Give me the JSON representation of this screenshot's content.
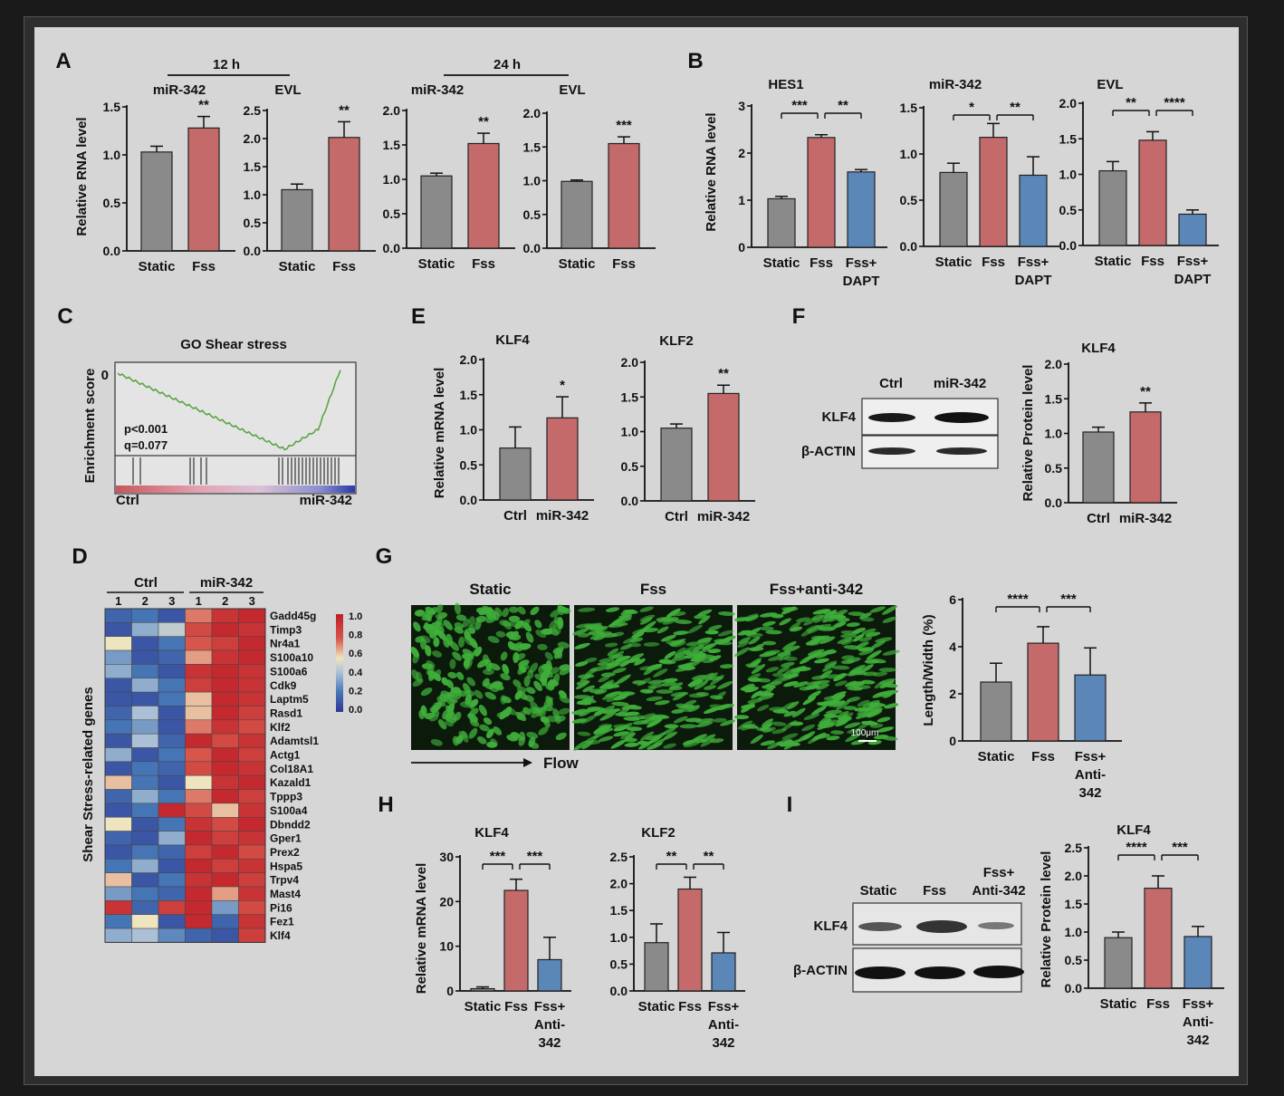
{
  "panels": {
    "A": {
      "letter": "A",
      "group_12h": "12 h",
      "group_24h": "24 h",
      "ylabel": "Relative RNA level",
      "charts": [
        {
          "title": "miR-342",
          "categories": [
            "Static",
            "Fss"
          ],
          "values": [
            1.03,
            1.28
          ],
          "errors": [
            0.06,
            0.12
          ],
          "ylim": [
            0,
            1.5
          ],
          "ticks": [
            "0.0",
            "0.5",
            "1.0",
            "1.5"
          ],
          "sig": [
            {
              "from": 1,
              "to": 1,
              "label": "**"
            }
          ]
        },
        {
          "title": "EVL",
          "categories": [
            "Static",
            "Fss"
          ],
          "values": [
            1.09,
            2.02
          ],
          "errors": [
            0.1,
            0.28
          ],
          "ylim": [
            0,
            2.5
          ],
          "ticks": [
            "0.0",
            "0.5",
            "1.0",
            "1.5",
            "2.0",
            "2.5"
          ],
          "sig": [
            {
              "from": 1,
              "to": 1,
              "label": "**"
            }
          ]
        },
        {
          "title": "miR-342",
          "categories": [
            "Static",
            "Fss"
          ],
          "values": [
            1.05,
            1.52
          ],
          "errors": [
            0.04,
            0.15
          ],
          "ylim": [
            0,
            2.0
          ],
          "ticks": [
            "0.0",
            "0.5",
            "1.0",
            "1.5",
            "2.0"
          ],
          "sig": [
            {
              "from": 1,
              "to": 1,
              "label": "**"
            }
          ]
        },
        {
          "title": "EVL",
          "categories": [
            "Static",
            "Fss"
          ],
          "values": [
            0.99,
            1.55
          ],
          "errors": [
            0.02,
            0.1
          ],
          "ylim": [
            0,
            2.0
          ],
          "ticks": [
            "0.0",
            "0.5",
            "1.0",
            "1.5",
            "2.0"
          ],
          "sig": [
            {
              "from": 1,
              "to": 1,
              "label": "***"
            }
          ]
        }
      ]
    },
    "B": {
      "letter": "B",
      "ylabel": "Relative RNA level",
      "charts": [
        {
          "title": "HES1",
          "categories": [
            "Static",
            "Fss",
            "Fss+ DAPT"
          ],
          "values": [
            1.03,
            2.33,
            1.6
          ],
          "errors": [
            0.05,
            0.06,
            0.05
          ],
          "ylim": [
            0,
            3
          ],
          "ticks": [
            "0",
            "1",
            "2",
            "3"
          ],
          "sig": [
            {
              "from": 0,
              "to": 1,
              "label": "***"
            },
            {
              "from": 1,
              "to": 2,
              "label": "**"
            }
          ]
        },
        {
          "title": "miR-342",
          "categories": [
            "Static",
            "Fss",
            "Fss+ DAPT"
          ],
          "values": [
            0.8,
            1.18,
            0.77
          ],
          "errors": [
            0.1,
            0.15,
            0.2
          ],
          "ylim": [
            0,
            1.5
          ],
          "ticks": [
            "0.0",
            "0.5",
            "1.0",
            "1.5"
          ],
          "sig": [
            {
              "from": 0,
              "to": 1,
              "label": "*"
            },
            {
              "from": 1,
              "to": 2,
              "label": "**"
            }
          ]
        },
        {
          "title": "EVL",
          "categories": [
            "Static",
            "Fss",
            "Fss+ DAPT"
          ],
          "values": [
            1.05,
            1.48,
            0.44
          ],
          "errors": [
            0.13,
            0.12,
            0.06
          ],
          "ylim": [
            0,
            2.0
          ],
          "ticks": [
            "0.0",
            "0.5",
            "1.0",
            "1.5",
            "2.0"
          ],
          "sig": [
            {
              "from": 0,
              "to": 1,
              "label": "**"
            },
            {
              "from": 1,
              "to": 2,
              "label": "****"
            }
          ]
        }
      ]
    },
    "C": {
      "letter": "C",
      "title": "GO Shear stress",
      "ylabel": "Enrichment score",
      "y0": "0",
      "stats": [
        "p<0.001",
        "q=0.077"
      ],
      "left_label": "Ctrl",
      "right_label": "miR-342"
    },
    "D": {
      "letter": "D",
      "group_ctrl": "Ctrl",
      "group_mir": "miR-342",
      "replicates": [
        "1",
        "2",
        "3",
        "1",
        "2",
        "3"
      ],
      "ylabel": "Shear Stress-related genes",
      "genes": [
        "Gadd45g",
        "Timp3",
        "Nr4a1",
        "S100a10",
        "S100a6",
        "Cdk9",
        "Laptm5",
        "Rasd1",
        "Klf2",
        "Adamtsl1",
        "Actg1",
        "Col18A1",
        "Kazald1",
        "Tppp3",
        "S100a4",
        "Dbndd2",
        "Gper1",
        "Prex2",
        "Hspa5",
        "Trpv4",
        "Mast4",
        "Pi16",
        "Fez1",
        "Klf4"
      ],
      "colorbar_ticks": [
        "1.0",
        "0.8",
        "0.6",
        "0.4",
        "0.2",
        "0.0"
      ],
      "matrix": [
        [
          0.15,
          0.2,
          0.1,
          0.7,
          0.9,
          0.95
        ],
        [
          0.1,
          0.35,
          0.45,
          0.8,
          0.95,
          0.9
        ],
        [
          0.55,
          0.1,
          0.2,
          0.75,
          0.85,
          0.95
        ],
        [
          0.3,
          0.1,
          0.15,
          0.65,
          0.9,
          0.95
        ],
        [
          0.35,
          0.2,
          0.1,
          0.9,
          0.95,
          0.9
        ],
        [
          0.1,
          0.35,
          0.2,
          0.85,
          0.95,
          0.9
        ],
        [
          0.1,
          0.1,
          0.2,
          0.6,
          0.95,
          0.9
        ],
        [
          0.15,
          0.4,
          0.1,
          0.6,
          0.95,
          0.85
        ],
        [
          0.2,
          0.3,
          0.1,
          0.7,
          0.9,
          0.8
        ],
        [
          0.1,
          0.4,
          0.15,
          0.95,
          0.8,
          0.9
        ],
        [
          0.35,
          0.1,
          0.2,
          0.75,
          0.95,
          0.85
        ],
        [
          0.1,
          0.2,
          0.15,
          0.8,
          0.95,
          0.9
        ],
        [
          0.6,
          0.2,
          0.1,
          0.55,
          0.9,
          0.95
        ],
        [
          0.15,
          0.35,
          0.2,
          0.7,
          0.95,
          0.85
        ],
        [
          0.1,
          0.2,
          0.95,
          0.8,
          0.6,
          0.9
        ],
        [
          0.55,
          0.1,
          0.2,
          0.9,
          0.8,
          0.95
        ],
        [
          0.15,
          0.1,
          0.35,
          0.95,
          0.85,
          0.9
        ],
        [
          0.1,
          0.2,
          0.15,
          0.85,
          0.95,
          0.8
        ],
        [
          0.2,
          0.35,
          0.1,
          0.95,
          0.85,
          0.9
        ],
        [
          0.6,
          0.1,
          0.2,
          0.9,
          0.95,
          0.85
        ],
        [
          0.3,
          0.2,
          0.15,
          0.95,
          0.65,
          0.9
        ],
        [
          0.9,
          0.15,
          0.85,
          0.95,
          0.3,
          0.8
        ],
        [
          0.2,
          0.55,
          0.1,
          0.95,
          0.15,
          0.9
        ],
        [
          0.35,
          0.4,
          0.25,
          0.15,
          0.1,
          0.85
        ]
      ]
    },
    "E": {
      "letter": "E",
      "ylabel": "Relative mRNA level",
      "charts": [
        {
          "title": "KLF4",
          "categories": [
            "Ctrl",
            "miR-342"
          ],
          "values": [
            0.74,
            1.17
          ],
          "errors": [
            0.3,
            0.3
          ],
          "ylim": [
            0,
            2.0
          ],
          "ticks": [
            "0.0",
            "0.5",
            "1.0",
            "1.5",
            "2.0"
          ],
          "sig": [
            {
              "from": 1,
              "to": 1,
              "label": "*"
            }
          ]
        },
        {
          "title": "KLF2",
          "categories": [
            "Ctrl",
            "miR-342"
          ],
          "values": [
            1.05,
            1.55
          ],
          "errors": [
            0.06,
            0.12
          ],
          "ylim": [
            0,
            2.0
          ],
          "ticks": [
            "0.0",
            "0.5",
            "1.0",
            "1.5",
            "2.0"
          ],
          "sig": [
            {
              "from": 1,
              "to": 1,
              "label": "**"
            }
          ]
        }
      ]
    },
    "F": {
      "letter": "F",
      "blot_cols": [
        "Ctrl",
        "miR-342"
      ],
      "blot_rows": [
        "KLF4",
        "β-ACTIN"
      ],
      "ylabel": "Relative Protein level",
      "chart": {
        "title": "KLF4",
        "categories": [
          "Ctrl",
          "miR-342"
        ],
        "values": [
          1.02,
          1.31
        ],
        "errors": [
          0.07,
          0.13
        ],
        "ylim": [
          0,
          2.0
        ],
        "ticks": [
          "0.0",
          "0.5",
          "1.0",
          "1.5",
          "2.0"
        ],
        "sig": [
          {
            "from": 1,
            "to": 1,
            "label": "**"
          }
        ]
      }
    },
    "G": {
      "letter": "G",
      "image_titles": [
        "Static",
        "Fss",
        "Fss+anti-342"
      ],
      "scale_bar": "100μm",
      "flow_label": "Flow",
      "ylabel": "Length/Width (%)",
      "chart": {
        "categories": [
          "Static",
          "Fss",
          "Fss+ Anti- 342"
        ],
        "values": [
          2.5,
          4.15,
          2.8
        ],
        "errors": [
          0.8,
          0.7,
          1.15
        ],
        "ylim": [
          0,
          6
        ],
        "ticks": [
          "0",
          "2",
          "4",
          "6"
        ],
        "sig": [
          {
            "from": 0,
            "to": 1,
            "label": "****"
          },
          {
            "from": 1,
            "to": 2,
            "label": "***"
          }
        ]
      }
    },
    "H": {
      "letter": "H",
      "ylabel": "Relative mRNA level",
      "charts": [
        {
          "title": "KLF4",
          "categories": [
            "Static",
            "Fss",
            "Fss+ Anti- 342"
          ],
          "values": [
            0.5,
            22.5,
            7
          ],
          "errors": [
            0.4,
            2.5,
            5
          ],
          "ylim": [
            0,
            30
          ],
          "ticks": [
            "0",
            "10",
            "20",
            "30"
          ],
          "sig": [
            {
              "from": 0,
              "to": 1,
              "label": "***"
            },
            {
              "from": 1,
              "to": 2,
              "label": "***"
            }
          ]
        },
        {
          "title": "KLF2",
          "categories": [
            "Static",
            "Fss",
            "Fss+ Anti- 342"
          ],
          "values": [
            0.9,
            1.9,
            0.71
          ],
          "errors": [
            0.35,
            0.22,
            0.38
          ],
          "ylim": [
            0,
            2.5
          ],
          "ticks": [
            "0.0",
            "0.5",
            "1.0",
            "1.5",
            "2.0",
            "2.5"
          ],
          "sig": [
            {
              "from": 0,
              "to": 1,
              "label": "**"
            },
            {
              "from": 1,
              "to": 2,
              "label": "**"
            }
          ]
        }
      ]
    },
    "I": {
      "letter": "I",
      "blot_cols": [
        "Static",
        "Fss",
        "Fss+ Anti-342"
      ],
      "blot_rows": [
        "KLF4",
        "β-ACTIN"
      ],
      "ylabel": "Relative Protein level",
      "chart": {
        "title": "KLF4",
        "categories": [
          "Static",
          "Fss",
          "Fss+ Anti- 342"
        ],
        "values": [
          0.9,
          1.78,
          0.92
        ],
        "errors": [
          0.1,
          0.22,
          0.18
        ],
        "ylim": [
          0,
          2.5
        ],
        "ticks": [
          "0.0",
          "0.5",
          "1.0",
          "1.5",
          "2.0",
          "2.5"
        ],
        "sig": [
          {
            "from": 0,
            "to": 1,
            "label": "****"
          },
          {
            "from": 1,
            "to": 2,
            "label": "***"
          }
        ]
      }
    }
  },
  "colors": {
    "static": "#8a8a8a",
    "fss": "#c46a6a",
    "treat": "#5a86b8",
    "bg": "#d6d6d6",
    "cells": "#3fae3a",
    "gsea_line": "#5aa546"
  }
}
